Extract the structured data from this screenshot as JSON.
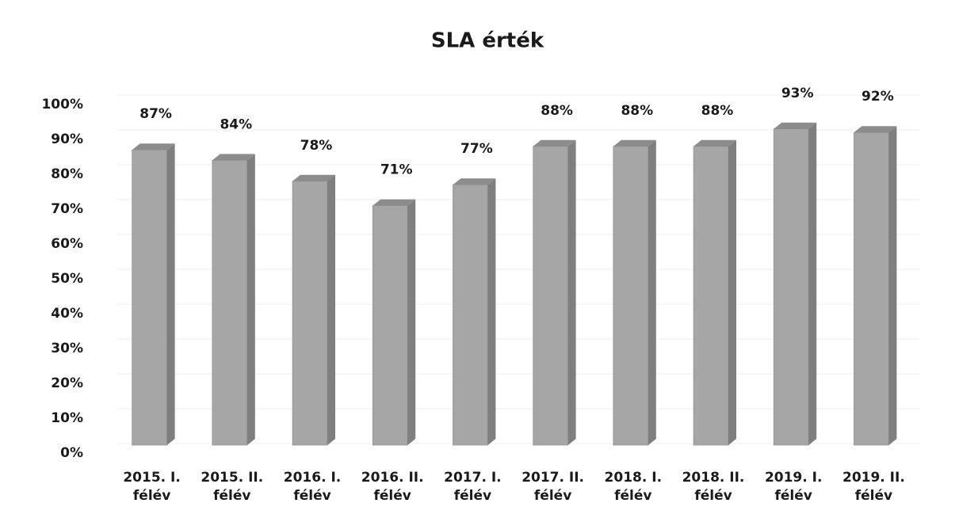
{
  "chart_data": {
    "type": "bar",
    "title": "SLA érték",
    "categories": [
      "2015. I. félév",
      "2015. II. félév",
      "2016. I. félév",
      "2016. II. félév",
      "2017. I. félév",
      "2017. II. félév",
      "2018. I. félév",
      "2018. II. félév",
      "2019. I. félév",
      "2019. II. félév"
    ],
    "values": [
      87,
      84,
      78,
      71,
      77,
      88,
      88,
      88,
      93,
      92
    ],
    "value_labels": [
      "87%",
      "84%",
      "78%",
      "71%",
      "77%",
      "88%",
      "88%",
      "88%",
      "93%",
      "92%"
    ],
    "color": "#a6a6a6",
    "ylim": [
      0,
      100
    ],
    "yticks": [
      {
        "value": 0,
        "label": "0%"
      },
      {
        "value": 10,
        "label": "10%"
      },
      {
        "value": 20,
        "label": "20%"
      },
      {
        "value": 30,
        "label": "30%"
      },
      {
        "value": 40,
        "label": "40%"
      },
      {
        "value": 50,
        "label": "50%"
      },
      {
        "value": 60,
        "label": "60%"
      },
      {
        "value": 70,
        "label": "70%"
      },
      {
        "value": 80,
        "label": "80%"
      },
      {
        "value": 90,
        "label": "90%"
      },
      {
        "value": 100,
        "label": "100%"
      }
    ],
    "grid": true
  }
}
